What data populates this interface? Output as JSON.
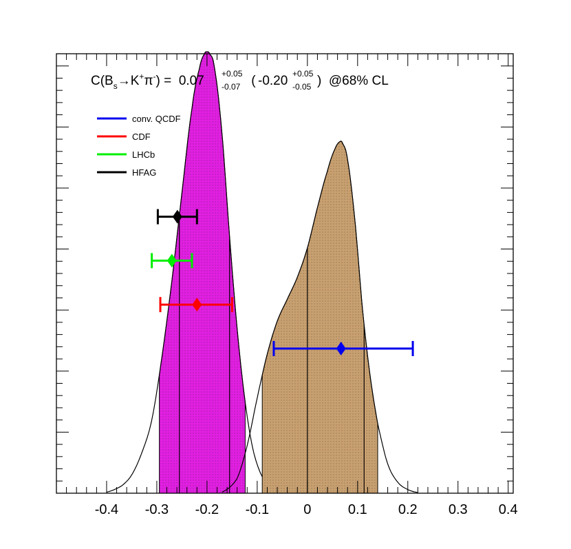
{
  "chart_data": {
    "type": "area",
    "title": {
      "prefix": "C(B",
      "prefix_sub": "s",
      "arrow": "→",
      "kaon": "K",
      "kaon_sup": "+",
      "pion": "π",
      "pion_sup": "-",
      "equals": ") =  ",
      "value1": "0.07",
      "value1_up": "+0.05",
      "value1_down": "-0.07",
      "open2": " (",
      "value2": "-0.20",
      "value2_up": "+0.05",
      "value2_down": "-0.05",
      "close2": ")  @68% CL"
    },
    "xlabel": "",
    "ylabel": "",
    "xlim": [
      -0.5,
      0.41
    ],
    "ylim": [
      0,
      1.2
    ],
    "x_ticks": [
      -0.4,
      -0.3,
      -0.2,
      -0.1,
      0,
      0.1,
      0.2,
      0.3,
      0.4
    ],
    "x_tick_labels": [
      "-0.4",
      "-0.3",
      "-0.2",
      "-0.1",
      "0",
      "0.1",
      "0.2",
      "0.3",
      "0.4"
    ],
    "grid": false,
    "legend_position": "top-left",
    "distributions": [
      {
        "id": "pdf-left",
        "fill": "#e020e0",
        "stroke": "#000000",
        "peak": -0.2,
        "band68": [
          -0.255,
          -0.155
        ],
        "band95": [
          -0.295,
          -0.124
        ],
        "x": [
          -0.4,
          -0.37,
          -0.35,
          -0.33,
          -0.31,
          -0.29,
          -0.27,
          -0.25,
          -0.23,
          -0.215,
          -0.205,
          -0.2,
          -0.195,
          -0.185,
          -0.17,
          -0.155,
          -0.14,
          -0.125,
          -0.11,
          -0.095,
          -0.08,
          -0.06
        ],
        "y": [
          0.003,
          0.02,
          0.05,
          0.11,
          0.2,
          0.37,
          0.58,
          0.82,
          1.05,
          1.16,
          1.2,
          1.205,
          1.2,
          1.16,
          0.98,
          0.7,
          0.45,
          0.26,
          0.13,
          0.06,
          0.025,
          0.005
        ]
      },
      {
        "id": "pdf-right",
        "fill": "#c8a070",
        "stroke": "#000000",
        "peak": 0.067,
        "band68": [
          0.0,
          0.113
        ],
        "band95": [
          -0.09,
          0.14
        ],
        "x": [
          -0.17,
          -0.14,
          -0.12,
          -0.1,
          -0.08,
          -0.06,
          -0.04,
          -0.02,
          0.0,
          0.02,
          0.04,
          0.055,
          0.065,
          0.07,
          0.08,
          0.095,
          0.11,
          0.125,
          0.14,
          0.16,
          0.18,
          0.2,
          0.22
        ],
        "y": [
          0.003,
          0.04,
          0.13,
          0.26,
          0.38,
          0.47,
          0.53,
          0.59,
          0.67,
          0.78,
          0.88,
          0.94,
          0.96,
          0.955,
          0.91,
          0.74,
          0.5,
          0.32,
          0.19,
          0.08,
          0.03,
          0.01,
          0.002
        ]
      }
    ],
    "series": [
      {
        "name": "conv. QCDF",
        "color": "#0000ee",
        "value": 0.067,
        "err_low": 0.134,
        "err_high": 0.143,
        "level": 0.395
      },
      {
        "name": "CDF",
        "color": "#ff0000",
        "value": -0.22,
        "err_low": 0.073,
        "err_high": 0.07,
        "level": 0.515
      },
      {
        "name": "LHCb",
        "color": "#00ee00",
        "value": -0.27,
        "err_low": 0.04,
        "err_high": 0.04,
        "level": 0.635
      },
      {
        "name": "HFAG",
        "color": "#000000",
        "value": -0.259,
        "err_low": 0.039,
        "err_high": 0.039,
        "level": 0.755
      }
    ]
  }
}
